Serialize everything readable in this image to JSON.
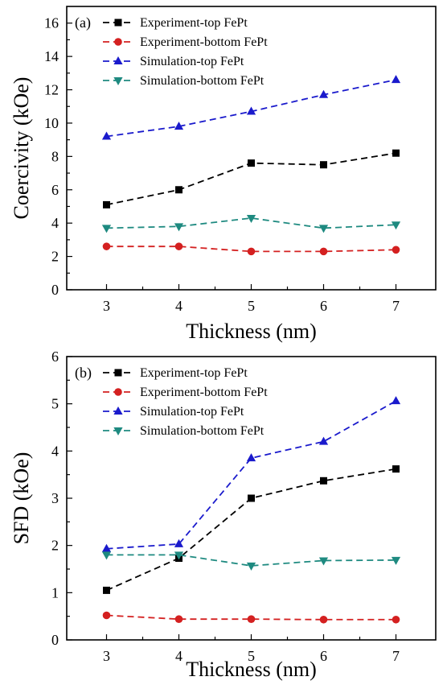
{
  "chart_data": [
    {
      "type": "line",
      "panel_label": "(a)",
      "xlabel": "Thickness (nm)",
      "ylabel": "Coercivity (kOe)",
      "x": [
        3,
        4,
        5,
        6,
        7
      ],
      "xlim": [
        2.45,
        7.55
      ],
      "ylim": [
        0,
        17
      ],
      "xticks": [
        3,
        4,
        5,
        6,
        7
      ],
      "yticks": [
        0,
        2,
        4,
        6,
        8,
        10,
        12,
        14,
        16
      ],
      "legend_position": "top-left",
      "grid": false,
      "series": [
        {
          "name": "Experiment-top FePt",
          "color": "#000000",
          "marker": "square",
          "values": [
            5.1,
            6.0,
            7.6,
            7.5,
            8.2
          ]
        },
        {
          "name": "Experiment-bottom FePt",
          "color": "#d42020",
          "marker": "circle",
          "values": [
            2.6,
            2.6,
            2.3,
            2.3,
            2.4
          ]
        },
        {
          "name": "Simulation-top FePt",
          "color": "#1a1acc",
          "marker": "triangle-up",
          "values": [
            9.2,
            9.8,
            10.7,
            11.7,
            12.6
          ]
        },
        {
          "name": "Simulation-bottom FePt",
          "color": "#1e8a80",
          "marker": "triangle-down",
          "values": [
            3.7,
            3.8,
            4.3,
            3.7,
            3.9
          ]
        }
      ]
    },
    {
      "type": "line",
      "panel_label": "(b)",
      "xlabel": "Thickness (nm)",
      "ylabel": "SFD (kOe)",
      "x": [
        3,
        4,
        5,
        6,
        7
      ],
      "xlim": [
        2.45,
        7.55
      ],
      "ylim": [
        0,
        6
      ],
      "xticks": [
        3,
        4,
        5,
        6,
        7
      ],
      "yticks": [
        0,
        1,
        2,
        3,
        4,
        5,
        6
      ],
      "legend_position": "top-left",
      "grid": false,
      "series": [
        {
          "name": "Experiment-top FePt",
          "color": "#000000",
          "marker": "square",
          "values": [
            1.05,
            1.73,
            3.0,
            3.37,
            3.62
          ]
        },
        {
          "name": "Experiment-bottom FePt",
          "color": "#d42020",
          "marker": "circle",
          "values": [
            0.52,
            0.44,
            0.44,
            0.43,
            0.43
          ]
        },
        {
          "name": "Simulation-top FePt",
          "color": "#1a1acc",
          "marker": "triangle-up",
          "values": [
            1.93,
            2.03,
            3.85,
            4.2,
            5.06
          ]
        },
        {
          "name": "Simulation-bottom FePt",
          "color": "#1e8a80",
          "marker": "triangle-down",
          "values": [
            1.8,
            1.8,
            1.57,
            1.68,
            1.69
          ]
        }
      ]
    }
  ]
}
